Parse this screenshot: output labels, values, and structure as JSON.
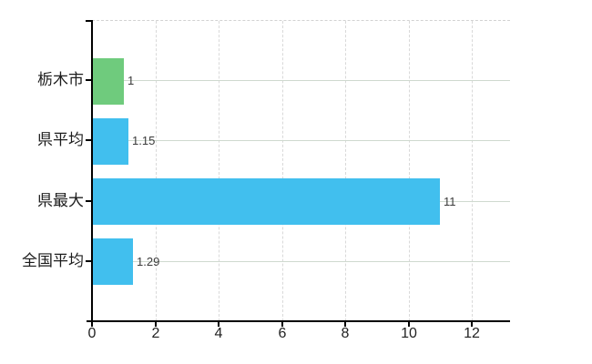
{
  "chart_data": {
    "type": "bar",
    "orientation": "horizontal",
    "title": "",
    "xlabel": "",
    "ylabel": "",
    "categories": [
      "栃木市",
      "県平均",
      "県最大",
      "全国平均"
    ],
    "values": [
      1,
      1.15,
      11,
      1.29
    ],
    "value_labels": [
      "1",
      "1.15",
      "11",
      "1.29"
    ],
    "bar_colors": [
      "#6fcb7d",
      "#41bfee",
      "#41bfee",
      "#41bfee"
    ],
    "x_ticks": [
      0,
      2,
      4,
      6,
      8,
      10,
      12
    ],
    "x_tick_labels": [
      "0",
      "2",
      "4",
      "6",
      "8",
      "10",
      "12"
    ],
    "xlim": [
      0,
      13.2
    ],
    "grid": true,
    "legend": false,
    "colors": {
      "background": "#ffffff",
      "axis": "#000000",
      "vertical_grid": "#d9d9d9",
      "horizontal_grid": "#cfd9cf",
      "highlight_bar": "#6fcb7d",
      "default_bar": "#41bfee",
      "value_label": "#3b3b3b",
      "category_label": "#1c1c1c",
      "tick_label": "#222222"
    }
  }
}
